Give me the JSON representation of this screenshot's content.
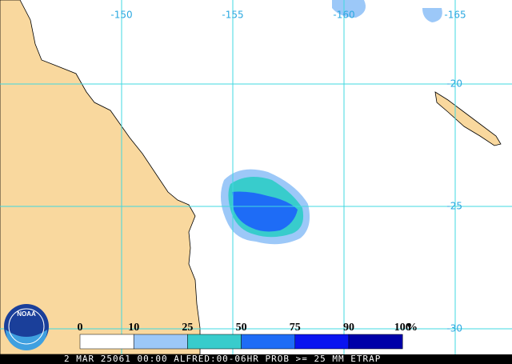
{
  "map": {
    "longitude_labels": [
      -150,
      -155,
      -160,
      -165
    ],
    "latitude_labels": [
      -20,
      -25,
      -30
    ],
    "legend": {
      "labels": [
        "0",
        "10",
        "25",
        "50",
        "75",
        "90",
        "100"
      ],
      "unit": "%",
      "colors": [
        "#ffffff",
        "#9cc8f8",
        "#38cccc",
        "#1e6cf6",
        "#0a14f0",
        "#0000a8"
      ]
    },
    "logo": "NOAA",
    "footer": "2 MAR 25061 00:00 ALFRED:00-06HR PROB >= 25 MM ETRAP"
  }
}
